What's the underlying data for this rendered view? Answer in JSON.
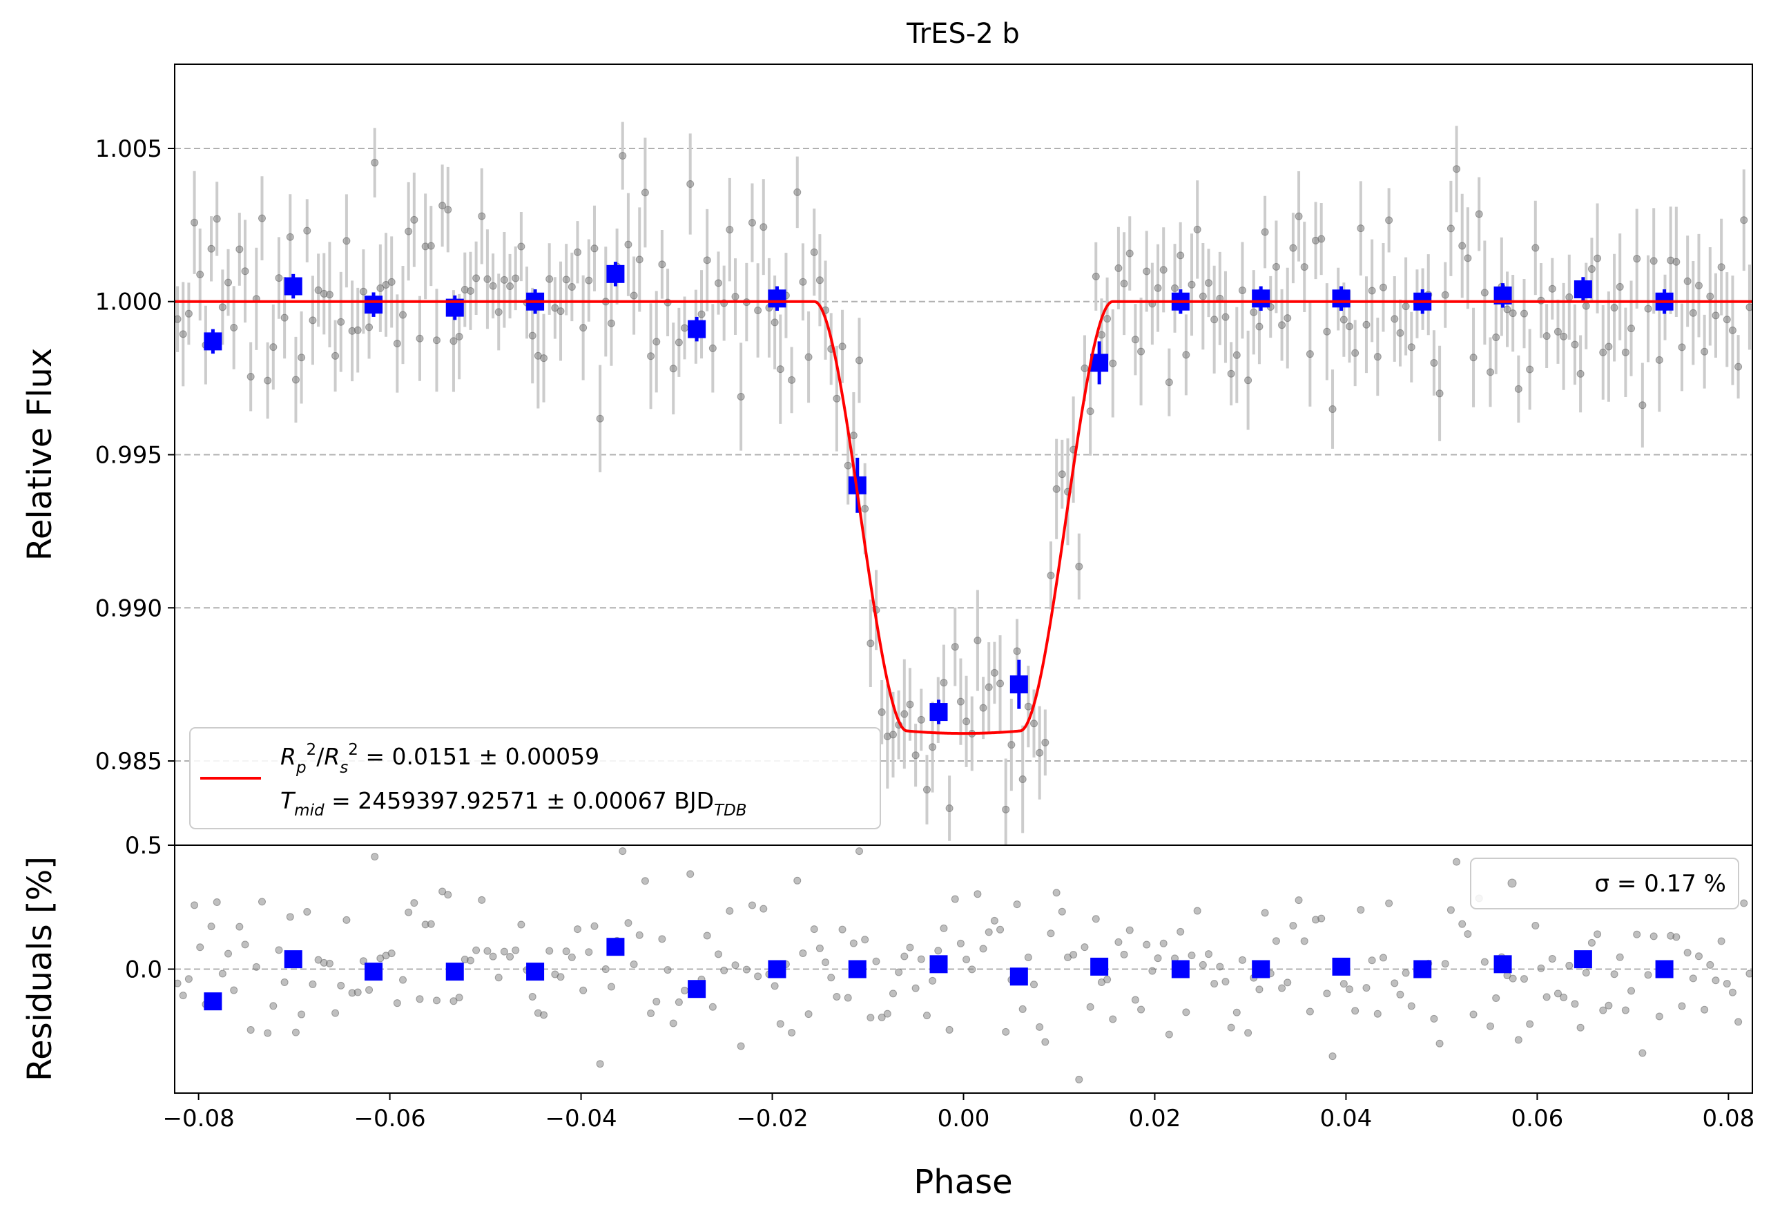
{
  "chart_data": [
    {
      "type": "scatter",
      "panel": "light-curve",
      "title": "TrES-2 b",
      "xlabel": "",
      "ylabel": "Relative Flux",
      "xlim": [
        -0.0825,
        0.0825
      ],
      "ylim": [
        0.98225,
        1.00775
      ],
      "yticks": [
        0.985,
        0.99,
        0.995,
        1.0,
        1.005
      ],
      "ytick_labels": [
        "0.985",
        "0.990",
        "0.995",
        "1.000",
        "1.005"
      ],
      "grid": "horizontal dashed",
      "legend_position": "lower-left",
      "model": {
        "depth": 0.0141,
        "t14": 0.0312,
        "t23": 0.0118,
        "color": "#ff0000",
        "legend_line1": "R_p^2/R_s^2 = 0.0151 ± 0.00059",
        "legend_line2": "T_mid = 2459397.92571 ± 0.00067 BJD_TDB"
      },
      "binned": {
        "color": "#0000ff",
        "x": [
          -0.0785,
          -0.0701,
          -0.0617,
          -0.0532,
          -0.0448,
          -0.0364,
          -0.0279,
          -0.0195,
          -0.0111,
          -0.0026,
          0.0058,
          0.0142,
          0.0227,
          0.0311,
          0.0395,
          0.048,
          0.0564,
          0.0648,
          0.0733
        ],
        "y": [
          0.9987,
          1.0005,
          0.9999,
          0.9998,
          1.0,
          1.0009,
          0.9991,
          1.0001,
          0.994,
          0.9866,
          0.9875,
          0.998,
          1.0,
          1.0001,
          1.0001,
          1.0,
          1.0002,
          1.0004,
          1.0
        ],
        "err": [
          0.0004,
          0.0004,
          0.0004,
          0.0004,
          0.0004,
          0.0004,
          0.0004,
          0.0004,
          0.0009,
          0.0004,
          0.0008,
          0.0007,
          0.0004,
          0.0004,
          0.0004,
          0.0004,
          0.0004,
          0.0004,
          0.0004
        ]
      },
      "raw_points": {
        "color": "#808080",
        "errorbar_color": "#cccccc",
        "count": 280,
        "flux_scatter": 0.0017
      }
    },
    {
      "type": "scatter",
      "panel": "residuals",
      "title": "",
      "xlabel": "Phase",
      "ylabel": "Residuals [%]",
      "xlim": [
        -0.0825,
        0.0825
      ],
      "ylim": [
        -0.5,
        0.5
      ],
      "xticks": [
        -0.08,
        -0.06,
        -0.04,
        -0.02,
        0.0,
        0.02,
        0.04,
        0.06,
        0.08
      ],
      "xtick_labels": [
        "−0.08",
        "−0.06",
        "−0.04",
        "−0.02",
        "0.00",
        "0.02",
        "0.04",
        "0.06",
        "0.08"
      ],
      "yticks": [
        0.0,
        0.5
      ],
      "ytick_labels": [
        "0.0",
        "0.5"
      ],
      "legend_position": "upper-right",
      "legend_label": "σ = 0.17 %",
      "binned_residuals": [
        -0.13,
        0.04,
        -0.01,
        -0.01,
        -0.01,
        0.09,
        -0.08,
        0.0,
        0.0,
        0.02,
        -0.03,
        0.01,
        0.0,
        0.0,
        0.01,
        0.0,
        0.02,
        0.04,
        0.0
      ]
    }
  ]
}
